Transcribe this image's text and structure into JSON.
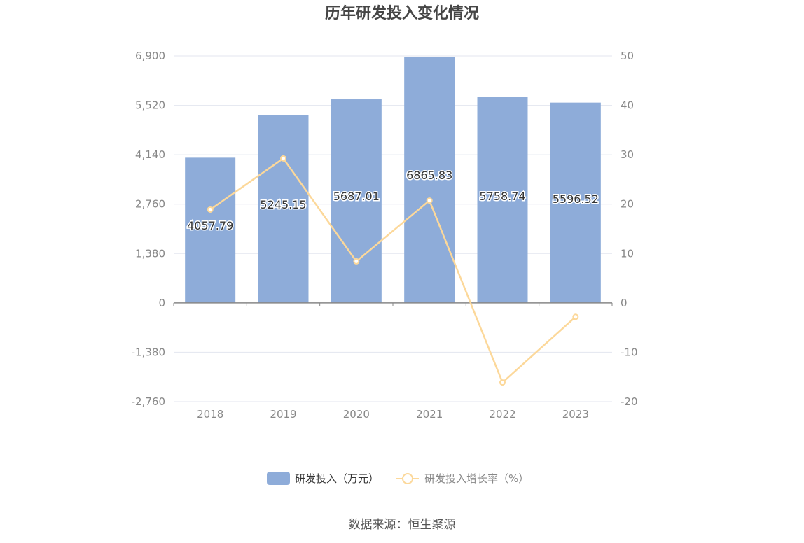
{
  "chart_data": {
    "type": "bar",
    "title": "历年研发投入变化情况",
    "categories": [
      "2018",
      "2019",
      "2020",
      "2021",
      "2022",
      "2023"
    ],
    "series": [
      {
        "name": "研发投入（万元）",
        "type": "bar",
        "axis": "left",
        "values": [
          4057.79,
          5245.15,
          5687.01,
          6865.83,
          5758.74,
          5596.52
        ],
        "labels": [
          "4057.79",
          "5245.15",
          "5687.01",
          "6865.83",
          "5758.74",
          "5596.52"
        ],
        "color": "#8eacd9"
      },
      {
        "name": "研发投入增长率（%）",
        "type": "line",
        "axis": "right",
        "values": [
          18.9,
          29.26,
          8.42,
          20.73,
          -16.12,
          -2.82
        ],
        "color": "#fcd89a"
      }
    ],
    "y_left": {
      "range": [
        -2760,
        6900
      ],
      "ticks": [
        "6,900",
        "5,520",
        "4,140",
        "2,760",
        "1,380",
        "0",
        "-1,380",
        "-2,760"
      ]
    },
    "y_right": {
      "range": [
        -20,
        50
      ],
      "ticks": [
        "50",
        "40",
        "30",
        "20",
        "10",
        "0",
        "-10",
        "-20"
      ]
    },
    "grid": true,
    "legend_position": "bottom"
  },
  "source_text": "数据来源：恒生聚源",
  "colors": {
    "bar": "#8eacd9",
    "line": "#fcd89a",
    "grid": "#e3e6ef",
    "axis": "#888888"
  }
}
